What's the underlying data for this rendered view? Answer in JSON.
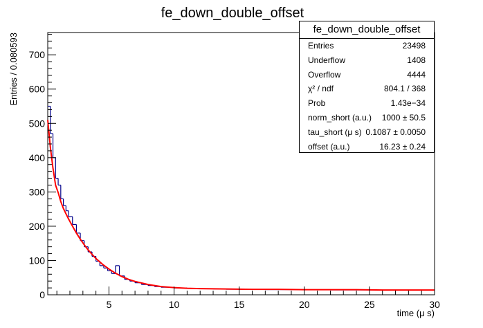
{
  "title": "fe_down_double_offset",
  "stats": {
    "title": "fe_down_double_offset",
    "rows": [
      {
        "label": "Entries",
        "value": "23498"
      },
      {
        "label": "Underflow",
        "value": "1408"
      },
      {
        "label": "Overflow",
        "value": "4444"
      },
      {
        "label": "χ² / ndf",
        "value": "804.1 / 368"
      },
      {
        "label": "Prob",
        "value": "1.43e−34"
      },
      {
        "label": "norm_short (a.u.)",
        "value": "1000 ± 50.5"
      },
      {
        "label": "tau_short (μ s)",
        "value": "0.1087 ± 0.0050"
      },
      {
        "label": "offset (a.u.)",
        "value": "16.23 ± 0.24"
      }
    ]
  },
  "chart_data": {
    "type": "line",
    "title": "fe_down_double_offset",
    "xlabel": "time (μ s)",
    "ylabel": "Entries / 0.080593",
    "xlim": [
      0.3,
      30
    ],
    "ylim": [
      0,
      765
    ],
    "xticks": [
      5,
      10,
      15,
      20,
      25,
      30
    ],
    "yticks": [
      100,
      200,
      300,
      400,
      500,
      600,
      700
    ],
    "grid": false,
    "series": [
      {
        "kind": "histogram",
        "color": "#00008b",
        "x": [
          0.3,
          0.5,
          0.7,
          0.9,
          1.1,
          1.3,
          1.5,
          1.7,
          1.9,
          2.2,
          2.5,
          2.8,
          3.1,
          3.4,
          3.7,
          4.0,
          4.3,
          4.6,
          4.9,
          5.2,
          5.5,
          5.8,
          6.2,
          6.6,
          7.0,
          7.5,
          8.0,
          8.5,
          9.0,
          10,
          11,
          12,
          13,
          14,
          15,
          16,
          17,
          18,
          19,
          20,
          21,
          22,
          23,
          24,
          25,
          26,
          27,
          28,
          29
        ],
        "values": [
          550,
          470,
          400,
          340,
          320,
          280,
          260,
          245,
          228,
          205,
          180,
          158,
          140,
          125,
          112,
          98,
          85,
          78,
          70,
          62,
          85,
          55,
          45,
          40,
          35,
          30,
          27,
          24,
          22,
          20,
          19,
          18,
          17,
          16,
          16,
          16,
          15,
          15,
          15,
          15,
          15,
          14,
          14,
          14,
          14,
          14,
          14,
          14,
          14
        ]
      },
      {
        "kind": "fit",
        "color": "#ff0000",
        "x": [
          0.3,
          0.5,
          0.7,
          0.9,
          1.1,
          1.3,
          1.5,
          1.7,
          1.9,
          2.2,
          2.5,
          2.8,
          3.1,
          3.4,
          3.7,
          4.0,
          4.5,
          5.0,
          5.5,
          6.0,
          6.5,
          7.0,
          8.0,
          9.0,
          10,
          11,
          12,
          14,
          16,
          18,
          20,
          22,
          24,
          26,
          28,
          30
        ],
        "values": [
          510,
          430,
          370,
          320,
          298,
          272,
          252,
          236,
          221,
          200,
          180,
          162,
          146,
          131,
          118,
          106,
          89,
          75,
          63,
          53,
          45,
          39,
          30,
          24,
          21,
          19,
          18,
          17,
          16,
          16,
          15,
          15,
          15,
          14,
          14,
          14
        ]
      }
    ]
  }
}
